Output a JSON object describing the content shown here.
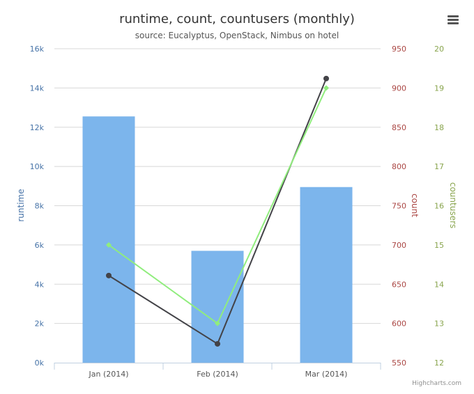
{
  "chart_data": {
    "type": "bar",
    "title": "runtime, count, countusers (monthly)",
    "subtitle": "source: Eucalyptus, OpenStack, Nimbus on hotel",
    "categories": [
      "Jan (2014)",
      "Feb (2014)",
      "Mar (2014)"
    ],
    "axes": {
      "runtime": {
        "label": "runtime",
        "min": 0,
        "max": 16000,
        "tick_labels": [
          "0k",
          "2k",
          "4k",
          "6k",
          "8k",
          "10k",
          "12k",
          "14k",
          "16k"
        ],
        "color": "#4572a7"
      },
      "count": {
        "label": "count",
        "min": 550,
        "max": 950,
        "tick_labels": [
          "550",
          "600",
          "650",
          "700",
          "750",
          "800",
          "850",
          "900",
          "950"
        ],
        "color": "#aa4643"
      },
      "countusers": {
        "label": "countusers",
        "min": 12,
        "max": 20,
        "tick_labels": [
          "12",
          "13",
          "14",
          "15",
          "16",
          "17",
          "18",
          "19",
          "20"
        ],
        "color": "#89a54e"
      }
    },
    "series": [
      {
        "name": "runtime",
        "type": "bar",
        "axis": "runtime",
        "color": "#7cb5ec",
        "values": [
          12550,
          5700,
          8950
        ]
      },
      {
        "name": "count",
        "type": "line",
        "axis": "count",
        "color": "#434348",
        "marker": "circle",
        "values": [
          661,
          574,
          912
        ]
      },
      {
        "name": "countusers",
        "type": "line",
        "axis": "countusers",
        "color": "#90ed7d",
        "marker": "diamond",
        "values": [
          15,
          13,
          19
        ]
      }
    ],
    "grid": true,
    "credits": "Highcharts.com"
  }
}
